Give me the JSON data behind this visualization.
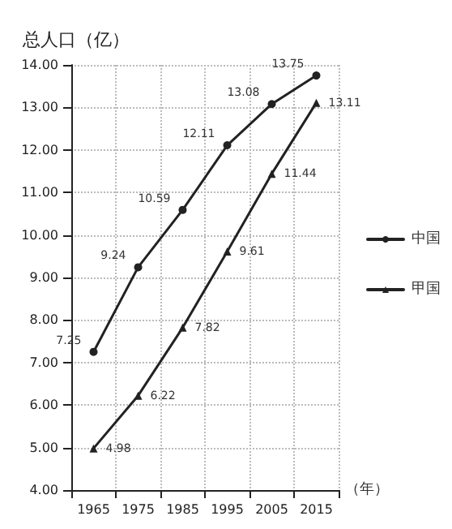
{
  "chart_data": {
    "type": "line",
    "ylabel": "总人口（亿）",
    "xlabel": "（年）",
    "categories": [
      "1965",
      "1975",
      "1985",
      "1995",
      "2005",
      "2015"
    ],
    "series": [
      {
        "name": "中国",
        "color": "#222222",
        "marker": "circle",
        "values": [
          7.25,
          9.24,
          10.59,
          12.11,
          13.08,
          13.75
        ]
      },
      {
        "name": "甲国",
        "color": "#222222",
        "marker": "triangle",
        "values": [
          4.98,
          6.22,
          7.82,
          9.61,
          11.44,
          13.11
        ]
      }
    ],
    "ylim": [
      4,
      14
    ],
    "yticks": [
      {
        "value": 4,
        "label": "4.00"
      },
      {
        "value": 5,
        "label": "5.00"
      },
      {
        "value": 6,
        "label": "6.00"
      },
      {
        "value": 7,
        "label": "7.00"
      },
      {
        "value": 8,
        "label": "8.00"
      },
      {
        "value": 9,
        "label": "9.00"
      },
      {
        "value": 10,
        "label": "10.00"
      },
      {
        "value": 11,
        "label": "11.00"
      },
      {
        "value": 12,
        "label": "12.00"
      },
      {
        "value": 13,
        "label": "13.00"
      },
      {
        "value": 14,
        "label": "14.00"
      }
    ],
    "grid": true,
    "legend": "right",
    "data_labels": true,
    "line_style": "solid"
  }
}
